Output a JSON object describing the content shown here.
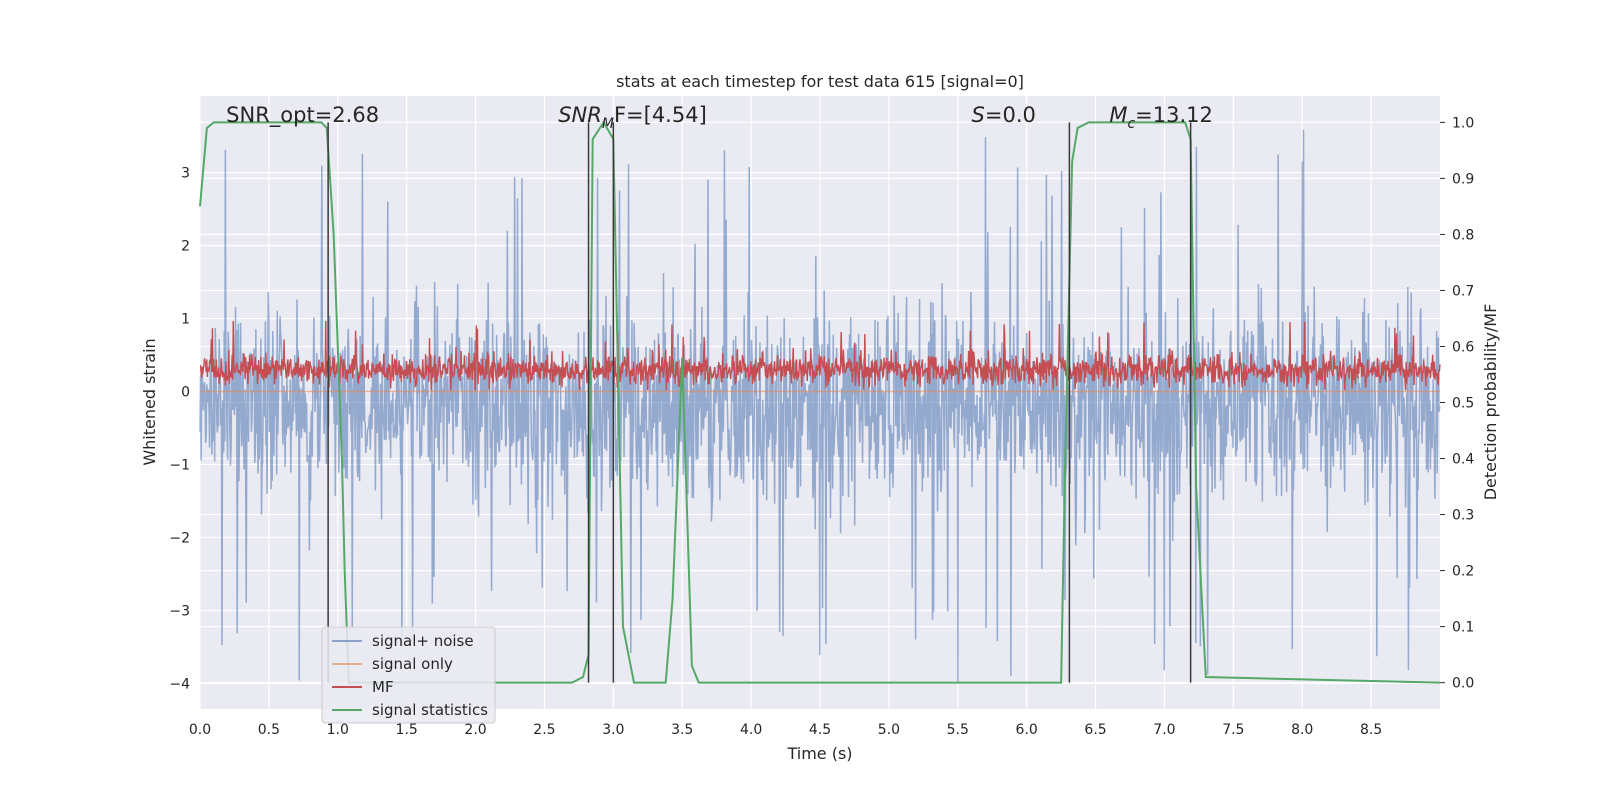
{
  "chart_data": {
    "type": "line",
    "title": "stats at each timestep for test data 615 [signal=0]",
    "xlabel": "Time (s)",
    "ylabel_left": "Whitened strain",
    "ylabel_right": "Detection probability/MF",
    "xlim": [
      0.0,
      9.0
    ],
    "ylim_left": [
      -4.35,
      4.05
    ],
    "ylim_right": [
      -0.047,
      1.047
    ],
    "xticks": [
      "0.0",
      "0.5",
      "1.0",
      "1.5",
      "2.0",
      "2.5",
      "3.0",
      "3.5",
      "4.0",
      "4.5",
      "5.0",
      "5.5",
      "6.0",
      "6.5",
      "7.0",
      "7.5",
      "8.0",
      "8.5"
    ],
    "yticks_left": [
      "3",
      "2",
      "1",
      "0",
      "−1",
      "−2",
      "−3",
      "−4"
    ],
    "yticks_right": [
      "1.0",
      "0.9",
      "0.8",
      "0.7",
      "0.6",
      "0.5",
      "0.4",
      "0.3",
      "0.2",
      "0.1",
      "0.0"
    ],
    "annotations": [
      {
        "prefix": "SNR_opt=2.68",
        "sub": "",
        "suffix": "",
        "italic": false,
        "x": 0.19
      },
      {
        "prefix": "SNR",
        "sub": "M",
        "suffix": "F=[4.54]",
        "italic": true,
        "x": 2.6
      },
      {
        "prefix": "S",
        "sub": "",
        "suffix": "=0.0",
        "italic": true,
        "x": 5.6
      },
      {
        "prefix": "M",
        "sub": "c",
        "suffix": "=13.12",
        "italic": true,
        "x": 6.6
      }
    ],
    "vertical_lines_x": [
      0.93,
      2.82,
      3.0,
      6.31,
      7.19
    ],
    "legend": {
      "placement": "lower-left",
      "entries": [
        "signal+ noise",
        "signal only",
        "MF",
        "signal statistics"
      ]
    },
    "series": [
      {
        "name": "signal+ noise",
        "axis": "left",
        "color": "#4c72b0",
        "description_values": {
          "mean": -0.2,
          "band_low": -1.7,
          "band_high": 1.3,
          "spike_low": -4.0,
          "spike_high": 3.6,
          "n_points": 2200
        }
      },
      {
        "name": "signal only",
        "axis": "left",
        "color": "#dd8452",
        "values": "constant 0.0"
      },
      {
        "name": "MF",
        "axis": "left",
        "color": "#c44e52",
        "description_values": {
          "base": 0.06,
          "mean": 0.3,
          "spike_high": 0.97,
          "n_points": 2200
        }
      },
      {
        "name": "signal statistics",
        "axis": "right",
        "color": "#55a868",
        "x": [
          0.0,
          0.05,
          0.1,
          0.2,
          0.88,
          0.92,
          0.97,
          1.03,
          1.05,
          1.08,
          2.7,
          2.78,
          2.82,
          2.85,
          2.93,
          3.0,
          3.07,
          3.15,
          3.38,
          3.43,
          3.5,
          3.57,
          3.62,
          6.25,
          6.28,
          6.33,
          6.37,
          6.45,
          7.1,
          7.15,
          7.19,
          7.23,
          7.3,
          9.0
        ],
        "y": [
          0.85,
          0.99,
          1.0,
          1.0,
          1.0,
          0.99,
          0.8,
          0.4,
          0.2,
          0.0,
          0.0,
          0.01,
          0.05,
          0.97,
          1.0,
          0.97,
          0.1,
          0.0,
          0.0,
          0.15,
          0.58,
          0.03,
          0.0,
          0.0,
          0.4,
          0.93,
          0.99,
          1.0,
          1.0,
          1.0,
          0.97,
          0.35,
          0.01,
          0.0
        ]
      }
    ]
  }
}
